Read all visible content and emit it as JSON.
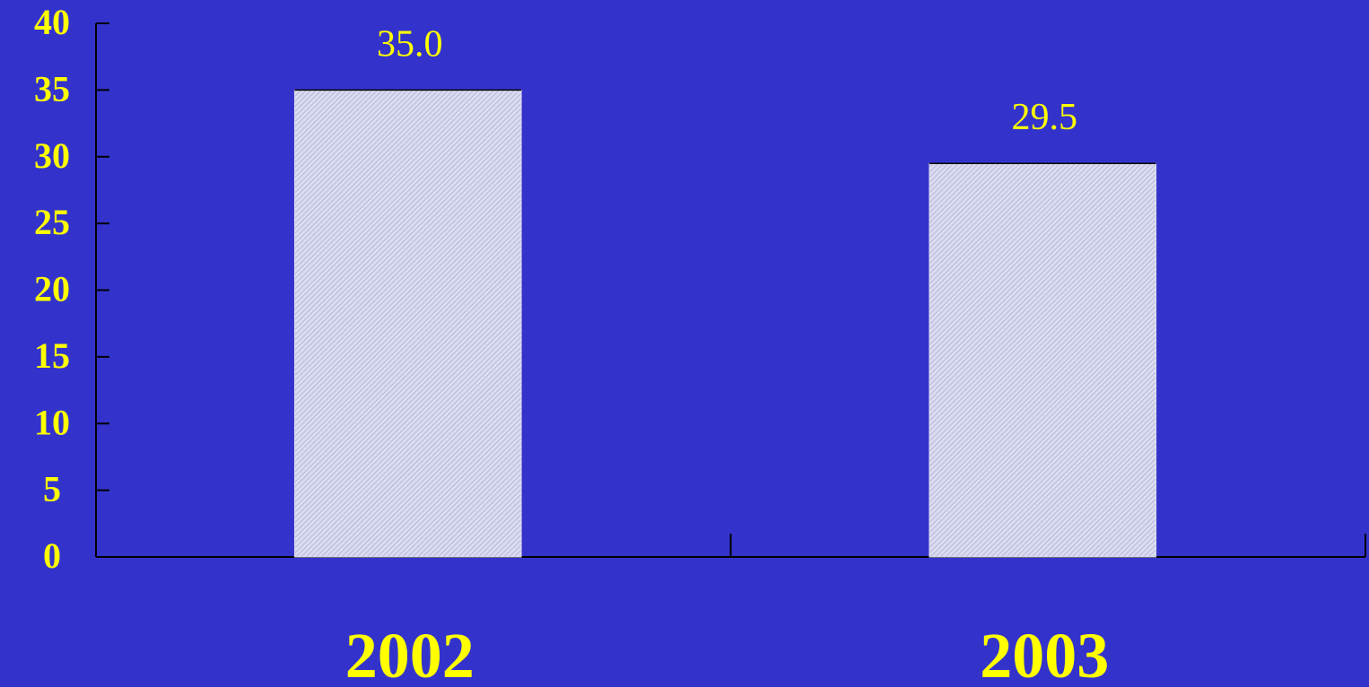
{
  "chart_data": {
    "type": "bar",
    "categories": [
      "2002",
      "2003"
    ],
    "values": [
      35.0,
      29.5
    ],
    "data_labels": [
      "35.0",
      "29.5"
    ],
    "yticks": [
      "0",
      "5",
      "10",
      "15",
      "20",
      "25",
      "30",
      "35",
      "40"
    ],
    "ylim": [
      0,
      40
    ],
    "title": "",
    "xlabel": "",
    "ylabel": "",
    "grid": false,
    "legend": "none",
    "colors": {
      "background": "#3333CC",
      "bar_fill": "#DCDCF0",
      "bar_hatch": "#A9A9D6",
      "text": "#FFFF00",
      "axis": "#000000"
    }
  }
}
